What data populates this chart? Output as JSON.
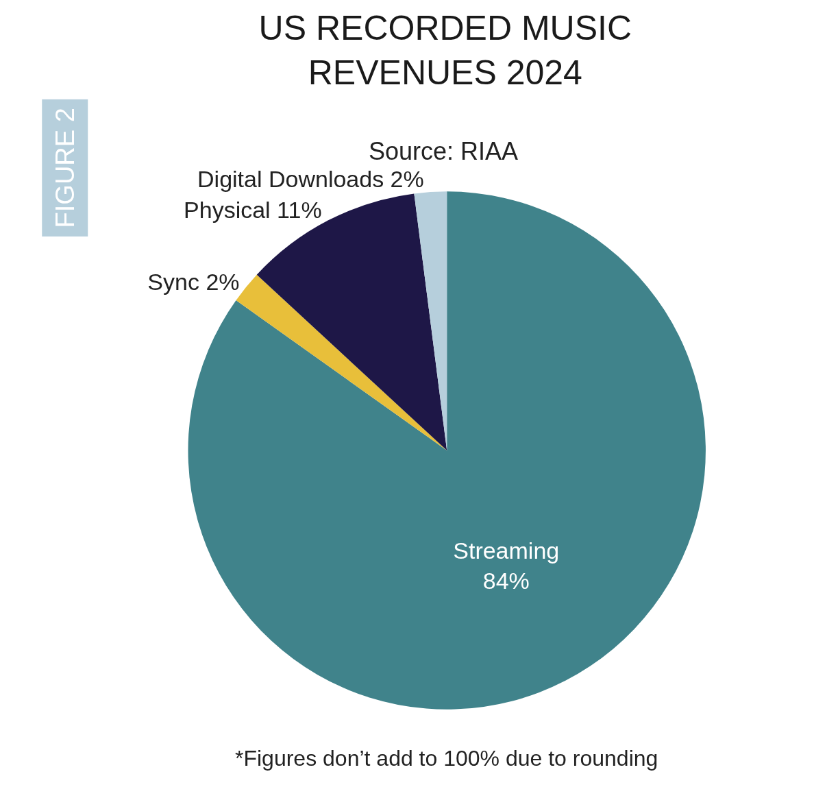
{
  "chart_data": {
    "type": "pie",
    "title": "US RECORDED MUSIC\nREVENUES 2024",
    "subtitle": "Source: RIAA",
    "categories": [
      "Streaming",
      "Sync",
      "Physical",
      "Digital Downloads"
    ],
    "values": [
      84,
      2,
      11,
      2
    ],
    "value_labels": [
      "84%",
      "2%",
      "11%",
      "2%"
    ],
    "colors": [
      "#40838b",
      "#e8bf3a",
      "#1e1747",
      "#b6cfdc"
    ],
    "annotations": [
      "FIGURE 2",
      "*Figures don’t add to 100% due to rounding"
    ],
    "legend": false
  }
}
